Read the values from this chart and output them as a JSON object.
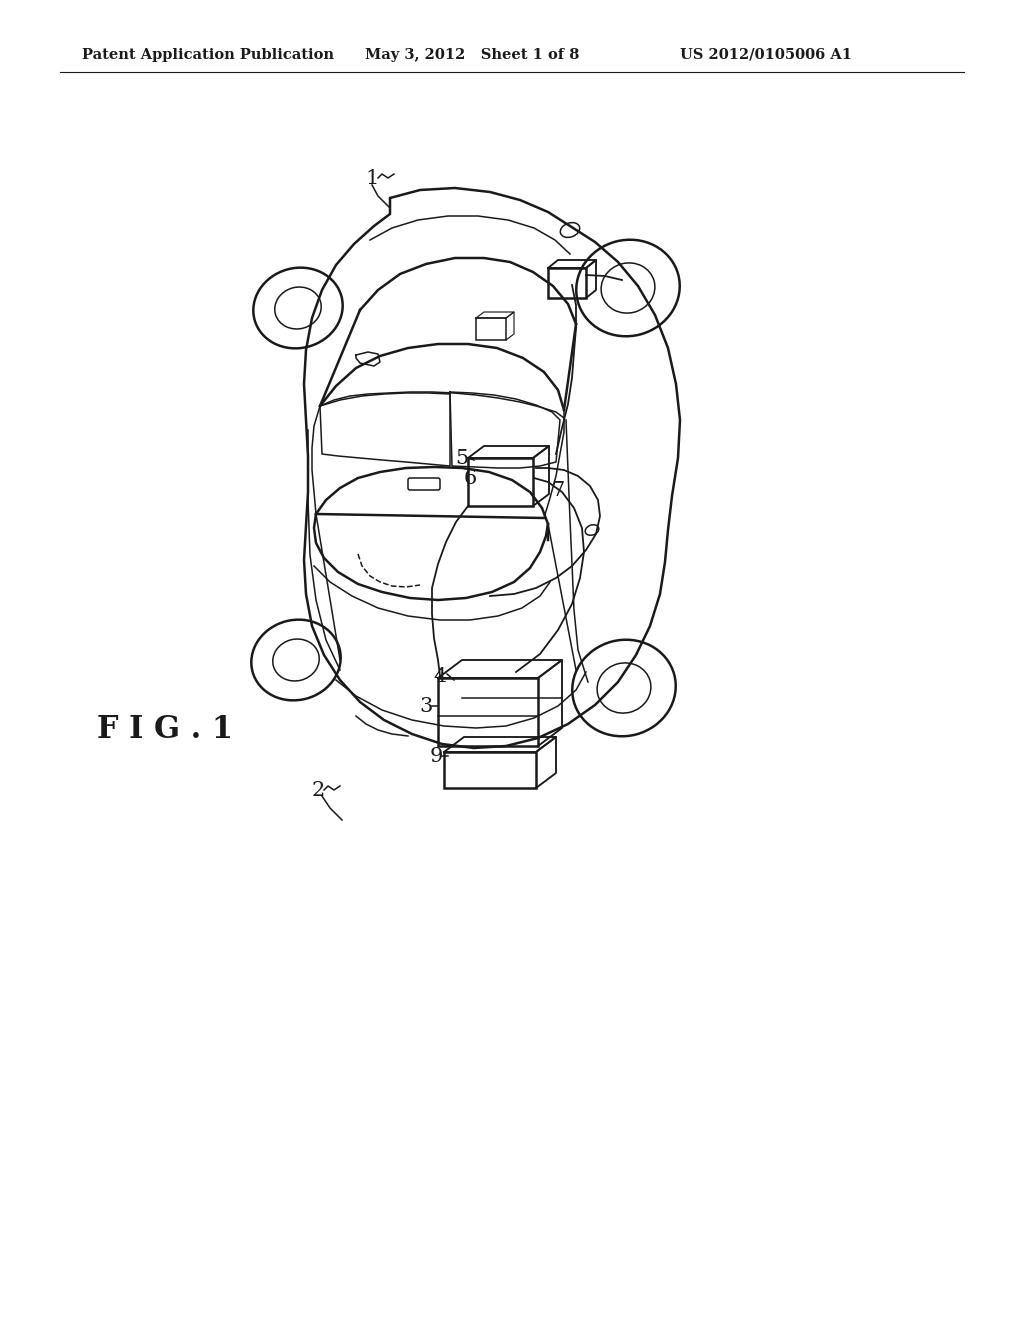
{
  "bg_color": "#ffffff",
  "line_color": "#1a1a1a",
  "header_left": "Patent Application Publication",
  "header_mid": "May 3, 2012   Sheet 1 of 8",
  "header_right": "US 2012/0105006 A1",
  "fig_label": "F I G . 1",
  "header_fontsize": 10.5,
  "fig_fontsize": 22,
  "label_fontsize": 15
}
